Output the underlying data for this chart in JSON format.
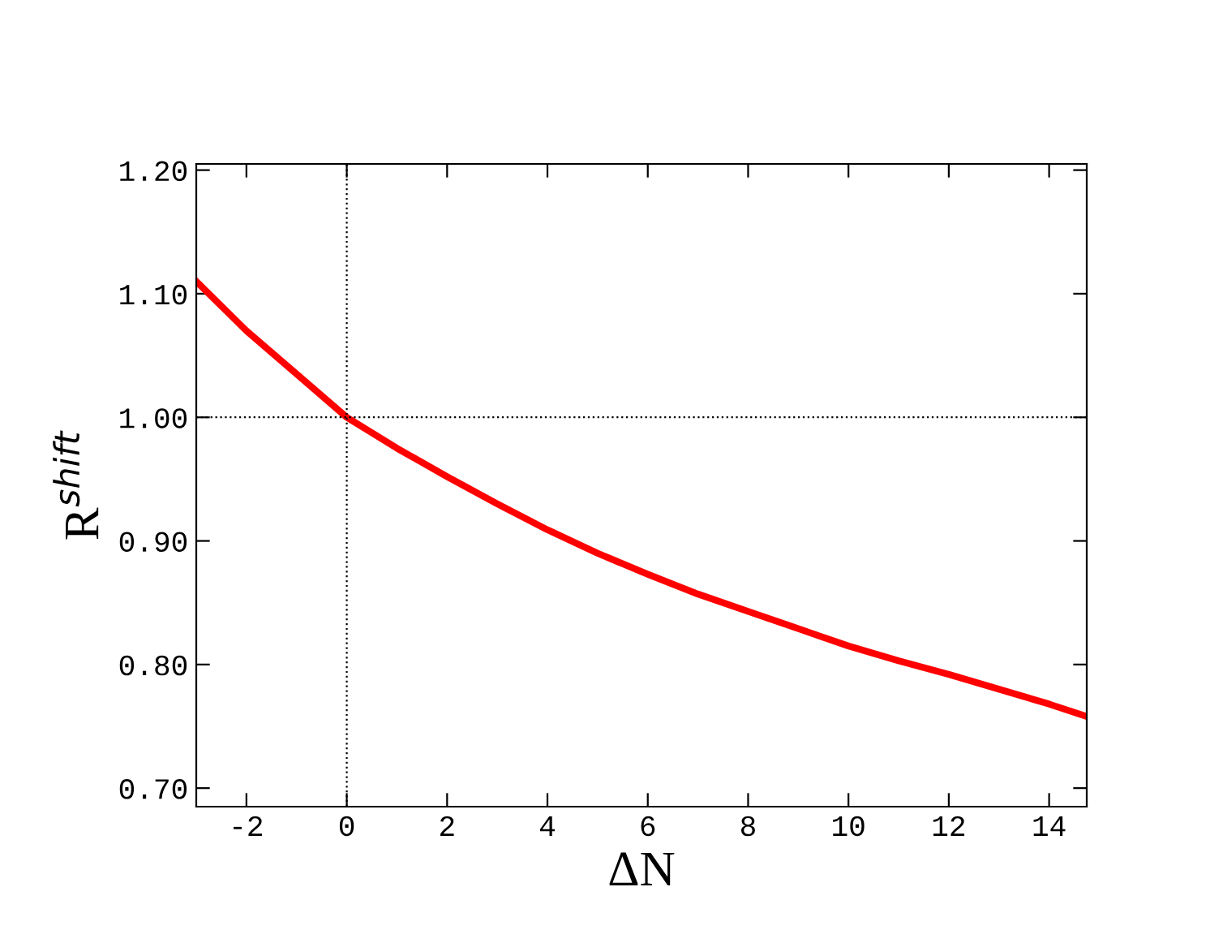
{
  "chart_data": {
    "type": "line",
    "xlabel": "ΔN",
    "ylabel": "R$^{shift}$",
    "x": [
      -3,
      -2,
      -1,
      0,
      1,
      2,
      3,
      4,
      5,
      6,
      7,
      8,
      9,
      10,
      11,
      12,
      13,
      14,
      14.75
    ],
    "series": [
      {
        "color": "#ff0000",
        "values": [
          1.11,
          1.07,
          1.035,
          1.0,
          0.975,
          0.952,
          0.93,
          0.909,
          0.89,
          0.873,
          0.857,
          0.843,
          0.829,
          0.815,
          0.803,
          0.792,
          0.78,
          0.768,
          0.758
        ]
      }
    ],
    "xlim": [
      -3,
      14.75
    ],
    "ylim": [
      0.685,
      1.205
    ],
    "xticks": [
      -2,
      0,
      2,
      4,
      6,
      8,
      10,
      12,
      14
    ],
    "yticks": [
      {
        "value": 0.7,
        "label": "0.70"
      },
      {
        "value": 0.8,
        "label": "0.80"
      },
      {
        "value": 0.9,
        "label": "0.90"
      },
      {
        "value": 1.0,
        "label": "1.00"
      },
      {
        "value": 1.1,
        "label": "1.10"
      },
      {
        "value": 1.2,
        "label": "1.20"
      }
    ],
    "ref_lines": [
      {
        "axis": "x",
        "value": 0,
        "line_style": "dotted",
        "color": "#000000"
      },
      {
        "axis": "y",
        "value": 1.0,
        "line_style": "dotted",
        "color": "#000000"
      }
    ],
    "grid": false,
    "legend": false,
    "marker": "none",
    "line_style": "solid"
  }
}
